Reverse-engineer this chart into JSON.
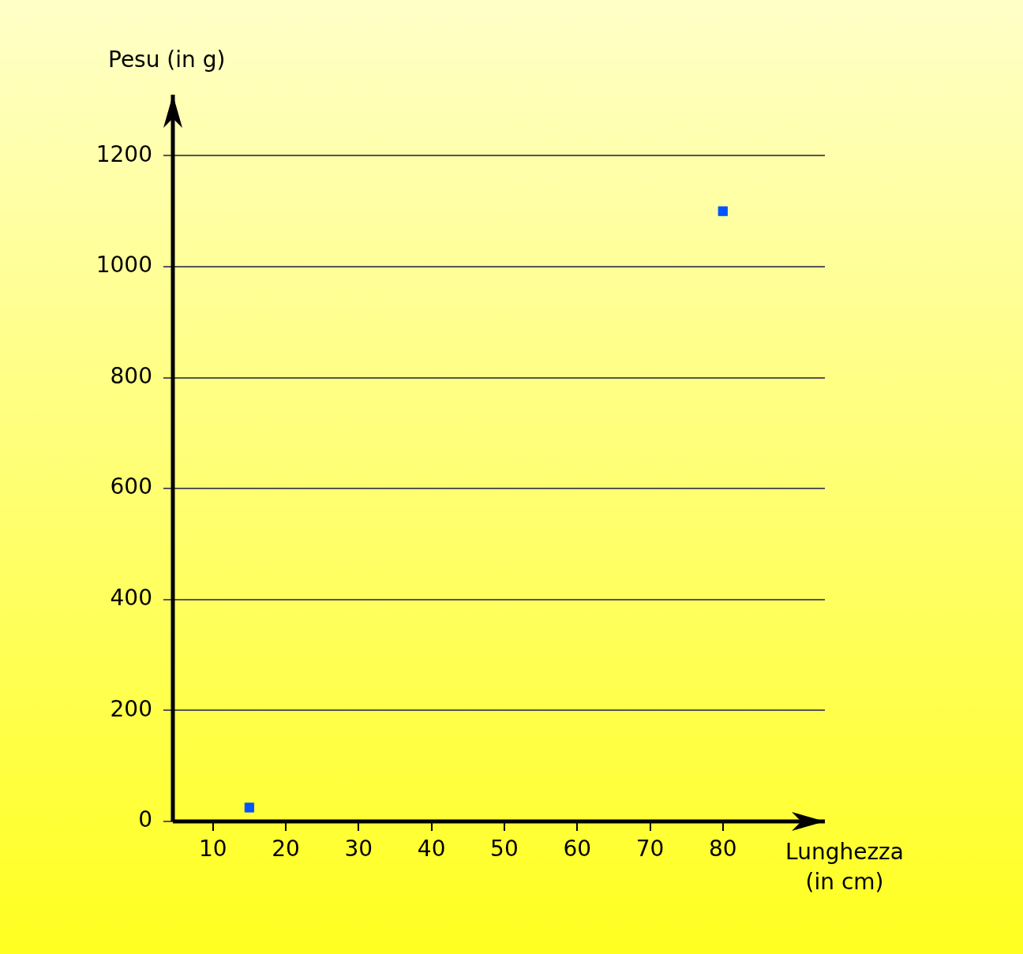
{
  "chart_data": {
    "type": "scatter",
    "xlabel": "Lunghezza (in cm)",
    "ylabel": "Pesu (in g)",
    "x": [
      15,
      80
    ],
    "values": [
      25,
      1100
    ],
    "color": "#0055ff",
    "marker": "square",
    "xlim": [
      4.5,
      94
    ],
    "xticks": [
      10,
      20,
      30,
      40,
      50,
      60,
      70,
      80
    ],
    "ylim": [
      0,
      1310
    ],
    "yticks": [
      0,
      200,
      400,
      600,
      800,
      1000,
      1200
    ],
    "grid": "y",
    "legend": false
  }
}
